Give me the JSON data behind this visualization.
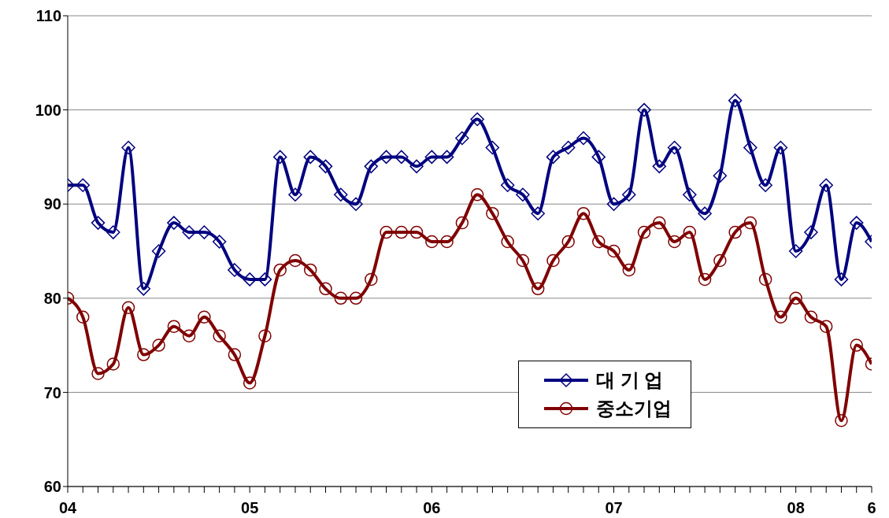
{
  "chart_data": {
    "type": "line",
    "categories": [
      "04",
      null,
      null,
      null,
      null,
      null,
      null,
      null,
      null,
      null,
      null,
      null,
      "05",
      null,
      null,
      null,
      null,
      null,
      null,
      null,
      null,
      null,
      null,
      null,
      "06",
      null,
      null,
      null,
      null,
      null,
      null,
      null,
      null,
      null,
      null,
      null,
      "07",
      null,
      null,
      null,
      null,
      null,
      null,
      null,
      null,
      null,
      null,
      null,
      "08",
      null,
      null,
      null,
      null,
      "6"
    ],
    "series": [
      {
        "name": "대 기 업",
        "color": "#000080",
        "marker": "diamond",
        "values": [
          92,
          92,
          88,
          87,
          96,
          81,
          85,
          88,
          87,
          87,
          86,
          83,
          82,
          82,
          95,
          91,
          95,
          94,
          91,
          90,
          94,
          95,
          95,
          94,
          95,
          95,
          97,
          99,
          96,
          92,
          91,
          89,
          95,
          96,
          97,
          95,
          90,
          91,
          100,
          94,
          96,
          91,
          89,
          93,
          101,
          96,
          92,
          96,
          85,
          87,
          92,
          82,
          88,
          86
        ]
      },
      {
        "name": "중소기업",
        "color": "#800000",
        "marker": "circle",
        "values": [
          80,
          78,
          72,
          73,
          79,
          74,
          75,
          77,
          76,
          78,
          76,
          74,
          71,
          76,
          83,
          84,
          83,
          81,
          80,
          80,
          82,
          87,
          87,
          87,
          86,
          86,
          88,
          91,
          89,
          86,
          84,
          81,
          84,
          86,
          89,
          86,
          85,
          83,
          87,
          88,
          86,
          87,
          82,
          84,
          87,
          88,
          82,
          78,
          80,
          78,
          77,
          67,
          75,
          73
        ]
      }
    ],
    "ylim": [
      60,
      110
    ],
    "yticks": [
      60,
      70,
      80,
      90,
      100,
      110
    ],
    "grid": "y",
    "legend": "bottom right"
  }
}
